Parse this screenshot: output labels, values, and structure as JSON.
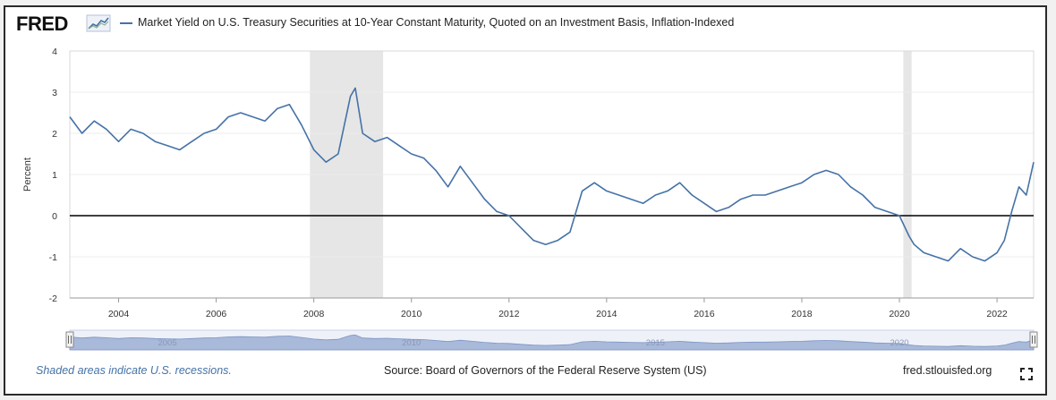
{
  "header": {
    "logo_text": "FRED",
    "legend_label": "Market Yield on U.S. Treasury Securities at 10-Year Constant Maturity, Quoted on an Investment Basis, Inflation-Indexed"
  },
  "footer": {
    "recession_note": "Shaded areas indicate U.S. recessions.",
    "source": "Source: Board of Governors of the Federal Reserve System (US)",
    "site": "fred.stlouisfed.org"
  },
  "colors": {
    "series": "#4572a7",
    "recession": "#e6e6e6",
    "zero_line": "#000000",
    "navigator_fill": "#a8b9d9"
  },
  "icons": {
    "fred_graph": "fred-graph-icon",
    "fullscreen": "fullscreen-icon",
    "nav_handle": "navigator-handle-icon"
  },
  "chart_data": {
    "type": "line",
    "title": "Market Yield on U.S. Treasury Securities at 10-Year Constant Maturity, Quoted on an Investment Basis, Inflation-Indexed",
    "xlabel": "",
    "ylabel": "Percent",
    "xlim": [
      2003.0,
      2022.75
    ],
    "ylim": [
      -2,
      4
    ],
    "x_ticks": [
      2004,
      2006,
      2008,
      2010,
      2012,
      2014,
      2016,
      2018,
      2020,
      2022
    ],
    "y_ticks": [
      -2,
      -1,
      0,
      1,
      2,
      3,
      4
    ],
    "navigator_labels": [
      "2005",
      "2010",
      "2015",
      "2020"
    ],
    "recessions": [
      [
        2007.92,
        2009.42
      ],
      [
        2020.08,
        2020.25
      ]
    ],
    "series": [
      {
        "name": "Market Yield on U.S. Treasury Securities at 10-Year Constant Maturity, Quoted on an Investment Basis, Inflation-Indexed",
        "x": [
          2003.0,
          2003.25,
          2003.5,
          2003.75,
          2004.0,
          2004.25,
          2004.5,
          2004.75,
          2005.0,
          2005.25,
          2005.5,
          2005.75,
          2006.0,
          2006.25,
          2006.5,
          2006.75,
          2007.0,
          2007.25,
          2007.5,
          2007.75,
          2008.0,
          2008.25,
          2008.5,
          2008.75,
          2008.85,
          2009.0,
          2009.25,
          2009.5,
          2009.75,
          2010.0,
          2010.25,
          2010.5,
          2010.75,
          2011.0,
          2011.25,
          2011.5,
          2011.75,
          2012.0,
          2012.25,
          2012.5,
          2012.75,
          2013.0,
          2013.25,
          2013.5,
          2013.75,
          2014.0,
          2014.25,
          2014.5,
          2014.75,
          2015.0,
          2015.25,
          2015.5,
          2015.75,
          2016.0,
          2016.25,
          2016.5,
          2016.75,
          2017.0,
          2017.25,
          2017.5,
          2017.75,
          2018.0,
          2018.25,
          2018.5,
          2018.75,
          2019.0,
          2019.25,
          2019.5,
          2019.75,
          2020.0,
          2020.2,
          2020.3,
          2020.5,
          2020.75,
          2021.0,
          2021.25,
          2021.5,
          2021.75,
          2022.0,
          2022.15,
          2022.3,
          2022.45,
          2022.6,
          2022.75
        ],
        "values": [
          2.4,
          2.0,
          2.3,
          2.1,
          1.8,
          2.1,
          2.0,
          1.8,
          1.7,
          1.6,
          1.8,
          2.0,
          2.1,
          2.4,
          2.5,
          2.4,
          2.3,
          2.6,
          2.7,
          2.2,
          1.6,
          1.3,
          1.5,
          2.9,
          3.1,
          2.0,
          1.8,
          1.9,
          1.7,
          1.5,
          1.4,
          1.1,
          0.7,
          1.2,
          0.8,
          0.4,
          0.1,
          0.0,
          -0.3,
          -0.6,
          -0.7,
          -0.6,
          -0.4,
          0.6,
          0.8,
          0.6,
          0.5,
          0.4,
          0.3,
          0.5,
          0.6,
          0.8,
          0.5,
          0.3,
          0.1,
          0.2,
          0.4,
          0.5,
          0.5,
          0.6,
          0.7,
          0.8,
          1.0,
          1.1,
          1.0,
          0.7,
          0.5,
          0.2,
          0.1,
          0.0,
          -0.5,
          -0.7,
          -0.9,
          -1.0,
          -1.1,
          -0.8,
          -1.0,
          -1.1,
          -0.9,
          -0.6,
          0.1,
          0.7,
          0.5,
          1.3
        ]
      }
    ]
  }
}
